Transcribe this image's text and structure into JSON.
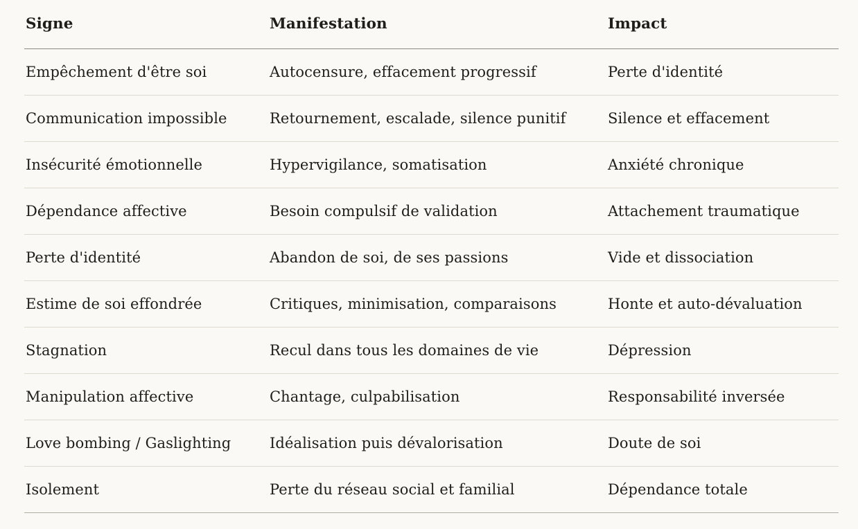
{
  "table": {
    "columns": [
      "Signe",
      "Manifestation",
      "Impact"
    ],
    "rows": [
      [
        "Empêchement d'être soi",
        "Autocensure, effacement progressif",
        "Perte d'identité"
      ],
      [
        "Communication impossible",
        "Retournement, escalade, silence punitif",
        "Silence et effacement"
      ],
      [
        "Insécurité émotionnelle",
        "Hypervigilance, somatisation",
        "Anxiété chronique"
      ],
      [
        "Dépendance affective",
        "Besoin compulsif de validation",
        "Attachement traumatique"
      ],
      [
        "Perte d'identité",
        "Abandon de soi, de ses passions",
        "Vide et dissociation"
      ],
      [
        "Estime de soi effondrée",
        "Critiques, minimisation, comparaisons",
        "Honte et auto-dévaluation"
      ],
      [
        "Stagnation",
        "Recul dans tous les domaines de vie",
        "Dépression"
      ],
      [
        "Manipulation affective",
        "Chantage, culpabilisation",
        "Responsabilité inversée"
      ],
      [
        "Love bombing / Gaslighting",
        "Idéalisation puis dévalorisation",
        "Doute de soi"
      ],
      [
        "Isolement",
        "Perte du réseau social et familial",
        "Dépendance totale"
      ]
    ]
  },
  "colors": {
    "background": "#faf9f5",
    "text": "#201e1a",
    "header_divider": "#8c8a80",
    "row_divider": "#ddd9cd",
    "bottom_border": "#b0ada3"
  }
}
